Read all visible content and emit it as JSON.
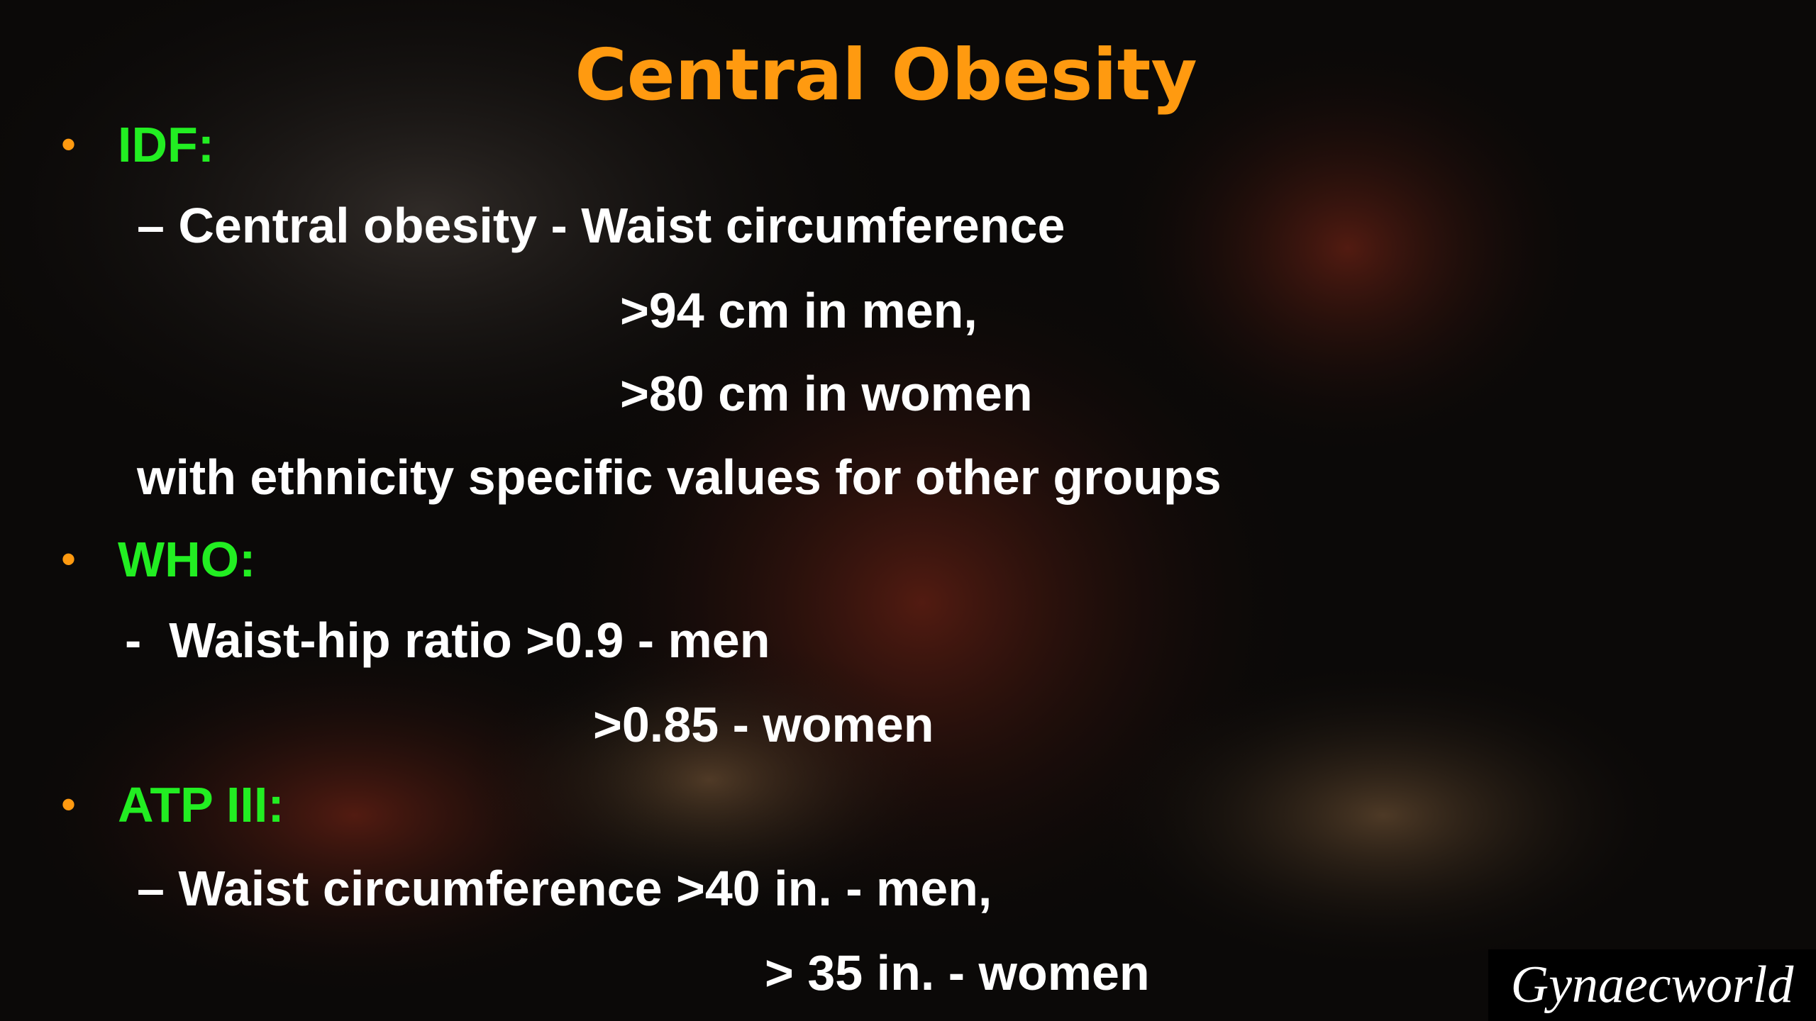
{
  "title": "Central Obesity",
  "sections": [
    {
      "heading": "IDF:",
      "lines": [
        "– Central obesity - Waist circumference",
        ">94 cm in men,",
        ">80 cm in women",
        "with ethnicity specific values for other groups"
      ]
    },
    {
      "heading": "WHO:",
      "lines": [
        "-  Waist-hip ratio >0.9 - men",
        ">0.85 - women"
      ]
    },
    {
      "heading": "ATP III:",
      "lines": [
        "– Waist circumference >40 in. - men,",
        "> 35 in. - women"
      ]
    }
  ],
  "logo": "Gynaecworld"
}
